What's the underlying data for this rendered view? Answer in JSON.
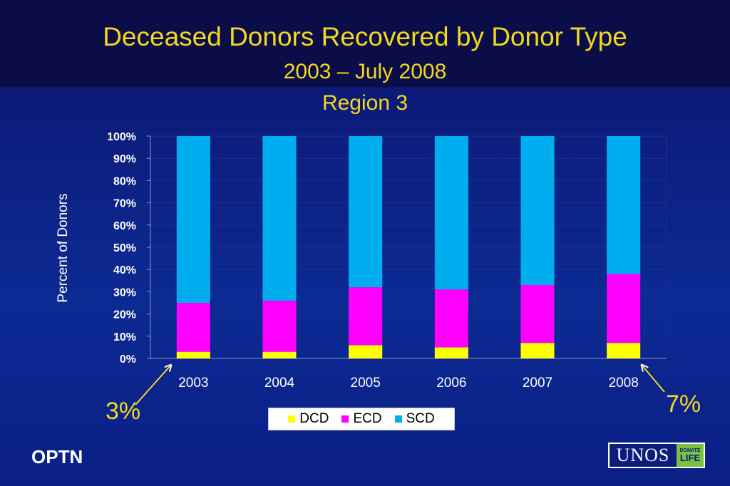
{
  "title": "Deceased Donors Recovered by Donor Type",
  "subtitle1": "2003 – July 2008",
  "subtitle2": "Region 3",
  "annotations": {
    "left": "3%",
    "right": "7%"
  },
  "footer": {
    "org": "OPTN"
  },
  "logo": {
    "text": "UNOS",
    "badge_top": "DONATE",
    "badge_bottom": "LIFE"
  },
  "colors": {
    "DCD": "#ffff00",
    "ECD": "#ff00ff",
    "SCD": "#00aeef",
    "text_yellow": "#f5d81c"
  },
  "chart_data": {
    "type": "bar",
    "stacked": true,
    "categories": [
      "2003",
      "2004",
      "2005",
      "2006",
      "2007",
      "2008"
    ],
    "series": [
      {
        "name": "DCD",
        "values": [
          3,
          3,
          6,
          5,
          7,
          7
        ]
      },
      {
        "name": "ECD",
        "values": [
          22,
          23,
          26,
          26,
          26,
          31
        ]
      },
      {
        "name": "SCD",
        "values": [
          75,
          74,
          68,
          69,
          67,
          62
        ]
      }
    ],
    "ylabel": "Percent of Donors",
    "yticks": [
      "0%",
      "10%",
      "20%",
      "30%",
      "40%",
      "50%",
      "60%",
      "70%",
      "80%",
      "90%",
      "100%"
    ],
    "ylim": [
      0,
      100
    ],
    "grid": true,
    "legend": "bottom"
  }
}
